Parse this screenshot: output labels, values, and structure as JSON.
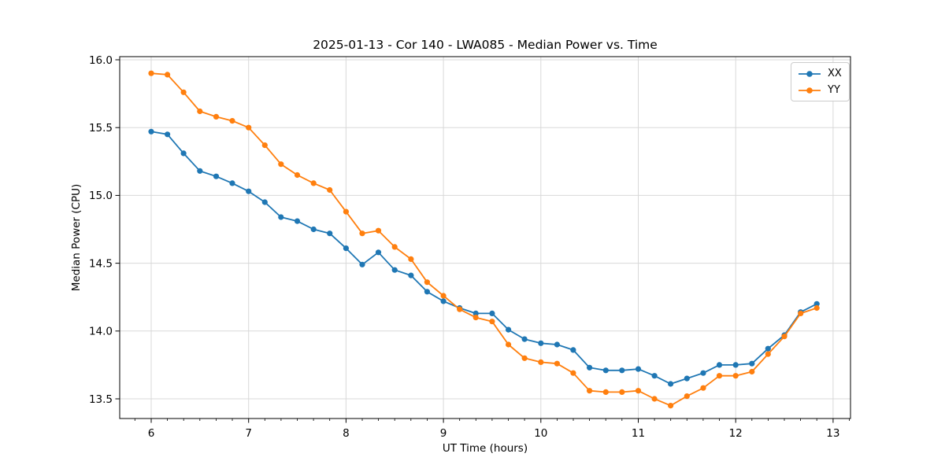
{
  "chart_data": {
    "type": "line",
    "title": "2025-01-13 - Cor 140 - LWA085 - Median Power vs. Time",
    "xlabel": "UT Time (hours)",
    "ylabel": "Median Power (CPU)",
    "xlim": [
      5.677,
      13.179
    ],
    "ylim": [
      13.355,
      16.023
    ],
    "x_major_ticks": [
      6,
      7,
      8,
      9,
      10,
      11,
      12,
      13
    ],
    "x_tick_labels": [
      "6",
      "7",
      "8",
      "9",
      "10",
      "11",
      "12",
      "13"
    ],
    "x_minor_tick_step": 0.16667,
    "y_major_ticks": [
      13.5,
      14.0,
      14.5,
      15.0,
      15.5,
      16.0
    ],
    "y_tick_labels": [
      "13.5",
      "14.0",
      "14.5",
      "15.0",
      "15.5",
      "16.0"
    ],
    "grid": true,
    "legend": {
      "position": "upper right",
      "entries": [
        "XX",
        "YY"
      ]
    },
    "x": [
      6.0,
      6.167,
      6.333,
      6.5,
      6.667,
      6.833,
      7.0,
      7.167,
      7.333,
      7.5,
      7.667,
      7.833,
      8.0,
      8.167,
      8.333,
      8.5,
      8.667,
      8.833,
      9.0,
      9.167,
      9.333,
      9.5,
      9.667,
      9.833,
      10.0,
      10.167,
      10.333,
      10.5,
      10.667,
      10.833,
      11.0,
      11.167,
      11.333,
      11.5,
      11.667,
      11.833,
      12.0,
      12.167,
      12.333,
      12.5,
      12.667,
      12.833
    ],
    "series": [
      {
        "name": "XX",
        "color": "#1f77b4",
        "marker": "circle",
        "values": [
          15.47,
          15.45,
          15.31,
          15.18,
          15.14,
          15.09,
          15.03,
          14.95,
          14.84,
          14.81,
          14.75,
          14.72,
          14.61,
          14.49,
          14.58,
          14.45,
          14.41,
          14.29,
          14.22,
          14.17,
          14.13,
          14.13,
          14.01,
          13.94,
          13.91,
          13.9,
          13.86,
          13.73,
          13.71,
          13.71,
          13.72,
          13.67,
          13.61,
          13.65,
          13.69,
          13.75,
          13.75,
          13.76,
          13.87,
          13.97,
          14.14,
          14.2
        ]
      },
      {
        "name": "YY",
        "color": "#ff7f0e",
        "marker": "circle",
        "values": [
          15.9,
          15.89,
          15.76,
          15.62,
          15.58,
          15.55,
          15.5,
          15.37,
          15.23,
          15.15,
          15.09,
          15.04,
          14.88,
          14.72,
          14.74,
          14.62,
          14.53,
          14.36,
          14.26,
          14.16,
          14.1,
          14.07,
          13.9,
          13.8,
          13.77,
          13.76,
          13.69,
          13.56,
          13.55,
          13.55,
          13.56,
          13.5,
          13.45,
          13.52,
          13.58,
          13.67,
          13.67,
          13.7,
          13.83,
          13.96,
          14.13,
          14.17
        ]
      }
    ],
    "colors": {
      "background": "#ffffff",
      "grid": "#d8d8d8",
      "axes": "#000000",
      "legend_border": "#cccccc"
    }
  }
}
